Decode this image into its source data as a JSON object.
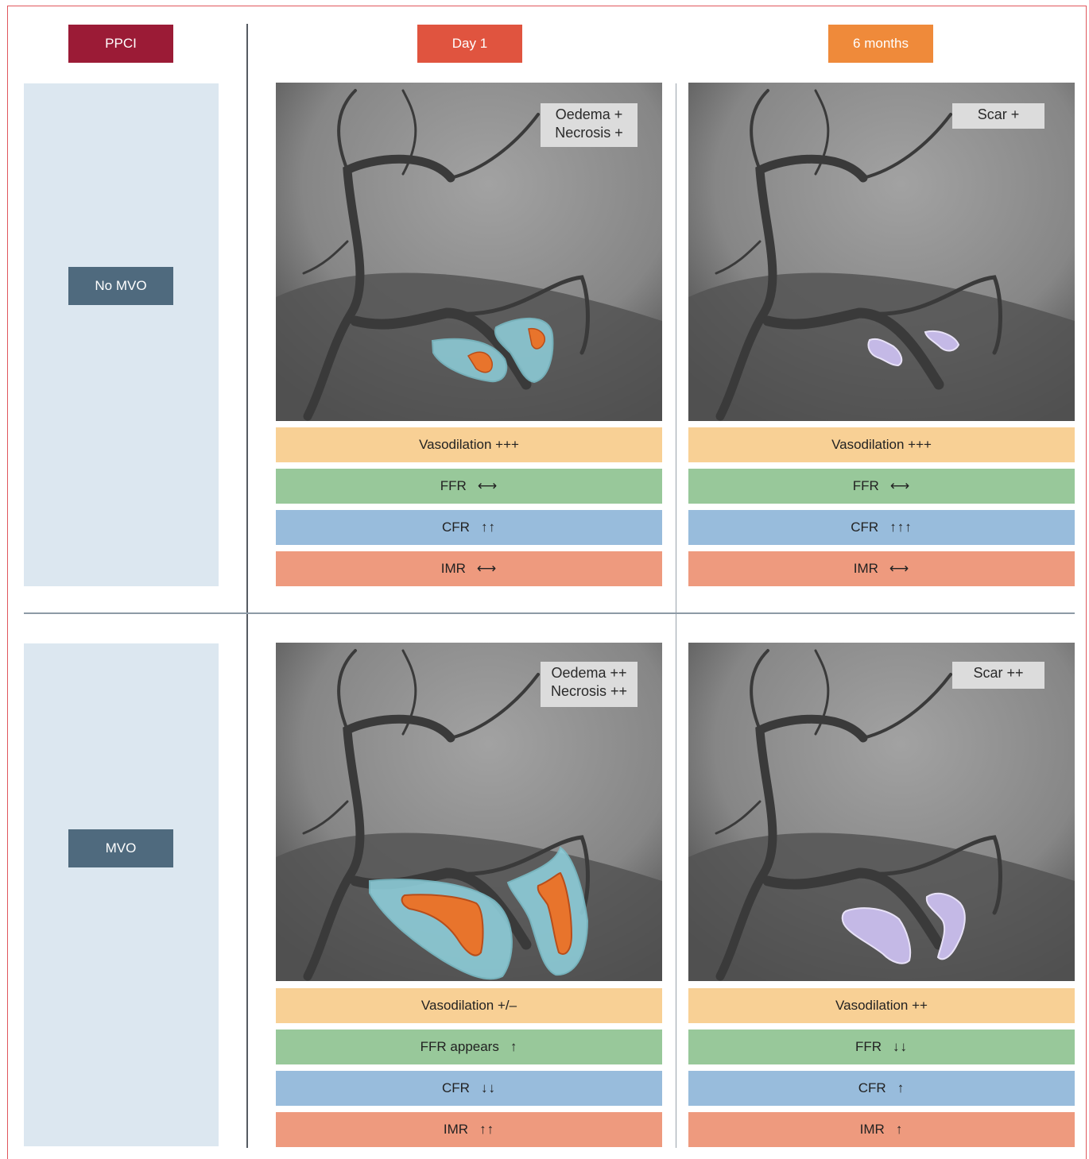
{
  "headers": {
    "ppci": "PPCI",
    "day1": "Day 1",
    "six_months": "6 months"
  },
  "rows": [
    {
      "label": "No MVO",
      "day1": {
        "tag": [
          "Oedema +",
          "Necrosis +"
        ],
        "vasodilation": "Vasodilation +++",
        "ffr": {
          "label": "FFR",
          "arrow": "⟷"
        },
        "cfr": {
          "label": "CFR",
          "arrow": "↑↑"
        },
        "imr": {
          "label": "IMR",
          "arrow": "⟷"
        }
      },
      "six_months": {
        "tag": [
          "Scar +"
        ],
        "vasodilation": "Vasodilation +++",
        "ffr": {
          "label": "FFR",
          "arrow": "⟷"
        },
        "cfr": {
          "label": "CFR",
          "arrow": "↑↑↑"
        },
        "imr": {
          "label": "IMR",
          "arrow": "⟷"
        }
      }
    },
    {
      "label": "MVO",
      "day1": {
        "tag": [
          "Oedema ++",
          "Necrosis ++"
        ],
        "vasodilation": "Vasodilation +/–",
        "ffr": {
          "label": "FFR appears",
          "arrow": "↑"
        },
        "cfr": {
          "label": "CFR",
          "arrow": "↓↓"
        },
        "imr": {
          "label": "IMR",
          "arrow": "↑↑"
        }
      },
      "six_months": {
        "tag": [
          "Scar ++"
        ],
        "vasodilation": "Vasodilation ++",
        "ffr": {
          "label": "FFR",
          "arrow": "↓↓"
        },
        "cfr": {
          "label": "CFR",
          "arrow": "↑"
        },
        "imr": {
          "label": "IMR",
          "arrow": "↑"
        }
      }
    }
  ],
  "colors": {
    "ppci": "#9b1b36",
    "day1": "#e0543f",
    "six_months": "#ef8a3a",
    "row_label": "#4f6a7e",
    "vasodilation": "#f8d095",
    "ffr": "#98c89a",
    "cfr": "#98bcdc",
    "imr": "#ee9a7e",
    "oedema": "#8fd0dc",
    "necrosis": "#e8742c",
    "scar": "#c4b9e6"
  }
}
